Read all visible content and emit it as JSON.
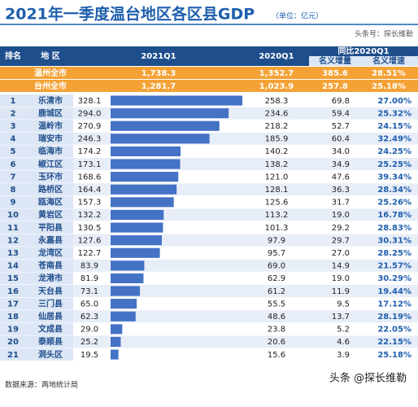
{
  "title": "2021年一季度温台地区各区县GDP",
  "unit": "（单位：亿元）",
  "source_tag": "头条号：探长维勒",
  "headers": {
    "rank": "排名",
    "region": "地 区",
    "q1_2021": "2021Q1",
    "q1_2020": "2020Q1",
    "compare": "同比2020Q1",
    "increase": "名义增量",
    "growth": "名义增速"
  },
  "totals": [
    [
      "温州全市",
      "1,738.3",
      "1,352.7",
      "385.6",
      "28.51%"
    ],
    [
      "台州全市",
      "1,281.7",
      "1,023.9",
      "257.8",
      "25.18%"
    ]
  ],
  "chart_data": {
    "type": "bar",
    "color": "#4472c4",
    "ranks": [
      1,
      2,
      3,
      4,
      5,
      6,
      7,
      8,
      9,
      10,
      11,
      12,
      13,
      14,
      15,
      16,
      17,
      18,
      19,
      20,
      21
    ],
    "categories": [
      "乐清市",
      "鹿城区",
      "温岭市",
      "瑞安市",
      "临海市",
      "椒江区",
      "玉环市",
      "路桥区",
      "瓯海区",
      "黄岩区",
      "平阳县",
      "永嘉县",
      "龙湾区",
      "苍南县",
      "龙港市",
      "天台县",
      "三门县",
      "仙居县",
      "文成县",
      "泰顺县",
      "洞头区"
    ],
    "values": [
      328.1,
      294.0,
      270.9,
      246.3,
      174.2,
      173.1,
      168.6,
      164.4,
      157.3,
      132.2,
      130.5,
      127.6,
      122.7,
      83.9,
      81.9,
      73.1,
      65.0,
      62.3,
      29.0,
      25.2,
      19.5
    ],
    "value_labels": [
      "328.1",
      "294.0",
      "270.9",
      "246.3",
      "174.2",
      "173.1",
      "168.6",
      "164.4",
      "157.3",
      "132.2",
      "130.5",
      "127.6",
      "122.7",
      "83.9",
      "81.9",
      "73.1",
      "65.0",
      "62.3",
      "29.0",
      "25.2",
      "19.5"
    ],
    "q1_2020": [
      "258.3",
      "234.6",
      "218.2",
      "185.9",
      "140.2",
      "138.2",
      "121.0",
      "128.1",
      "125.6",
      "113.2",
      "101.3",
      "97.9",
      "95.7",
      "69.0",
      "62.9",
      "61.2",
      "55.5",
      "48.6",
      "23.8",
      "20.6",
      "15.6"
    ],
    "increase": [
      "69.8",
      "59.4",
      "52.7",
      "60.4",
      "34.0",
      "34.9",
      "47.6",
      "36.3",
      "31.7",
      "19.0",
      "29.2",
      "29.7",
      "27.0",
      "14.9",
      "19.0",
      "11.9",
      "9.5",
      "13.7",
      "5.2",
      "4.6",
      "3.9"
    ],
    "growth": [
      "27.00%",
      "25.32%",
      "24.15%",
      "32.49%",
      "24.25%",
      "25.25%",
      "39.34%",
      "28.34%",
      "25.26%",
      "16.78%",
      "28.83%",
      "30.31%",
      "28.25%",
      "21.57%",
      "30.29%",
      "19.44%",
      "17.12%",
      "28.19%",
      "22.05%",
      "22.15%",
      "25.18%"
    ]
  },
  "footer": "数据来源：两地统计局",
  "watermark": "头条 @探长维勒"
}
